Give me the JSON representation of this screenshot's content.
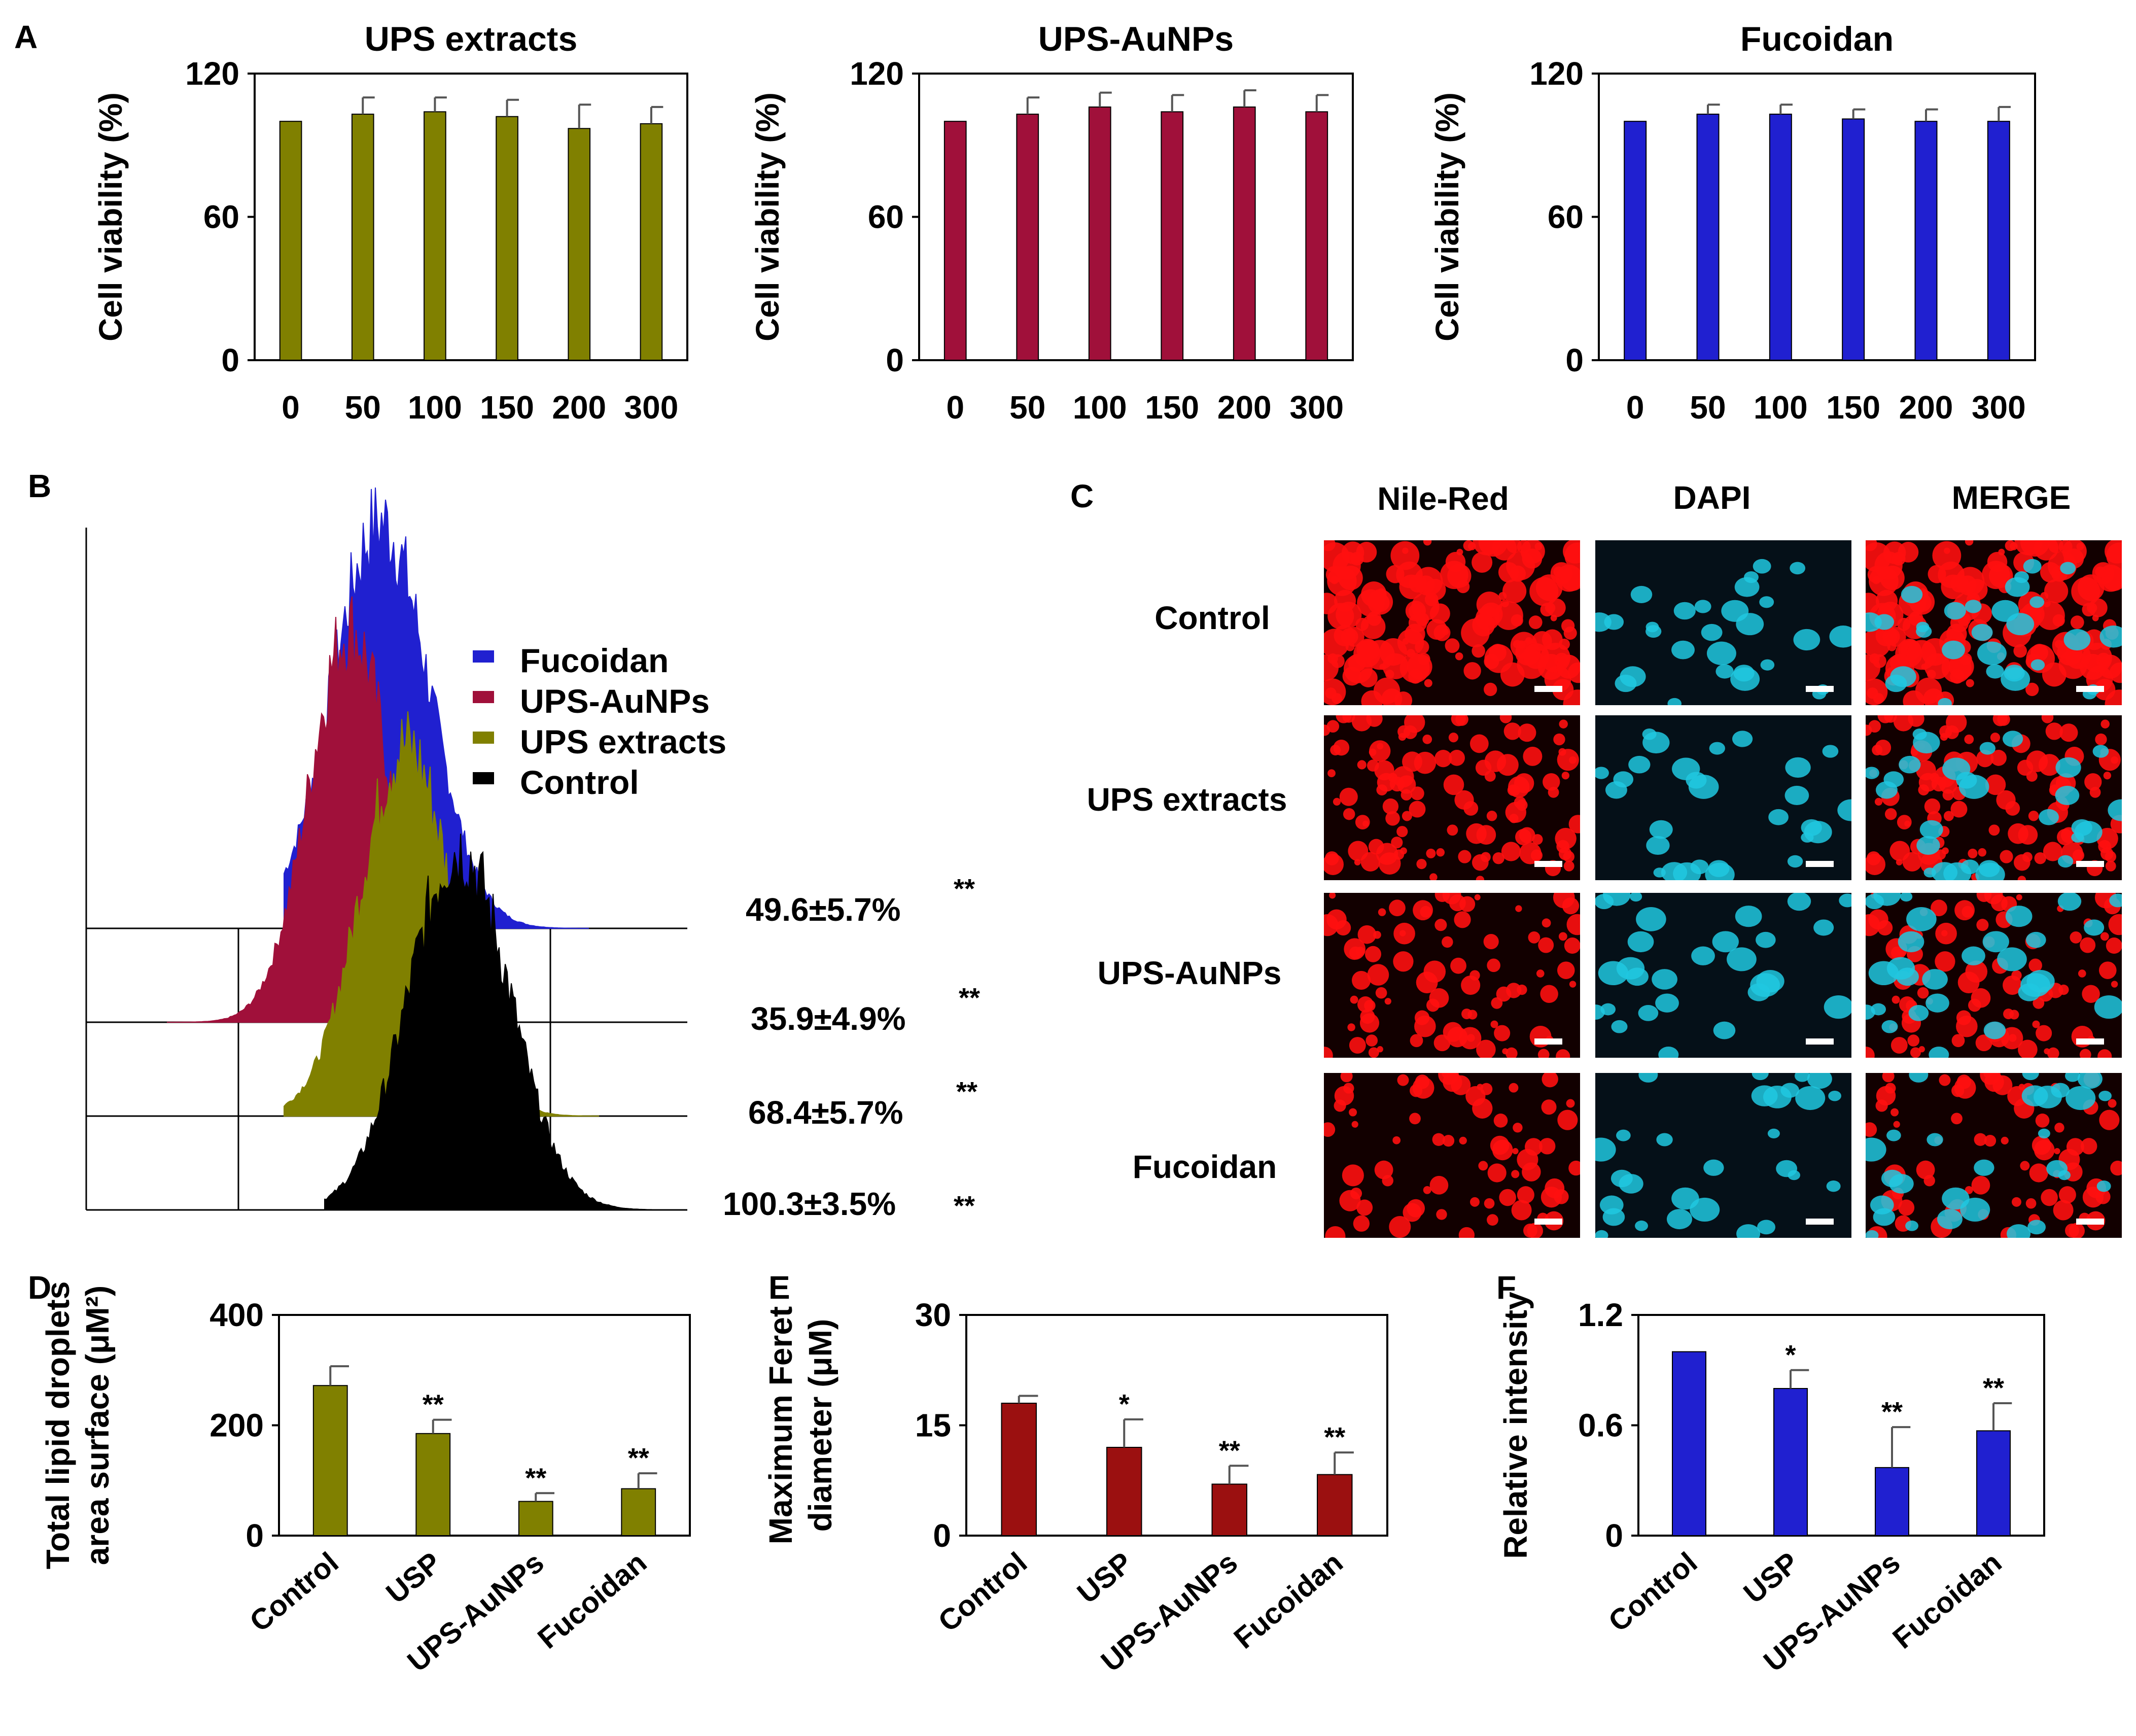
{
  "figure": {
    "panel_labels": [
      "A",
      "B",
      "C",
      "D",
      "E",
      "F"
    ],
    "colors": {
      "olive": "#808000",
      "crimson": "#A0103A",
      "blue": "#2020D0",
      "darkred": "#9B1010",
      "black": "#000000",
      "nile_red": "#FF1010",
      "dapi": "#20C8E0"
    }
  },
  "chart_data": [
    {
      "panel": "A",
      "type": "bar",
      "title": "UPS extracts",
      "ylabel": "Cell viability  (%)",
      "xlabel": "",
      "categories": [
        "0",
        "50",
        "100",
        "150",
        "200",
        "300"
      ],
      "values": [
        100,
        103,
        104,
        102,
        97,
        99
      ],
      "errors": [
        0,
        7,
        6,
        7,
        10,
        7
      ],
      "ylim": [
        0,
        120
      ],
      "yticks": [
        "0",
        "60",
        "120"
      ],
      "color": "#808000"
    },
    {
      "panel": "A",
      "type": "bar",
      "title": "UPS-AuNPs",
      "ylabel": "Cell viability  (%)",
      "xlabel": "",
      "categories": [
        "0",
        "50",
        "100",
        "150",
        "200",
        "300"
      ],
      "values": [
        100,
        103,
        106,
        104,
        106,
        104
      ],
      "errors": [
        0,
        7,
        6,
        7,
        7,
        7
      ],
      "ylim": [
        0,
        120
      ],
      "yticks": [
        "0",
        "60",
        "120"
      ],
      "color": "#A0103A"
    },
    {
      "panel": "A",
      "type": "bar",
      "title": "Fucoidan",
      "ylabel": "Cell viability  (%)",
      "xlabel": "",
      "categories": [
        "0",
        "50",
        "100",
        "150",
        "200",
        "300"
      ],
      "values": [
        100,
        103,
        103,
        101,
        100,
        100
      ],
      "errors": [
        0,
        4,
        4,
        4,
        5,
        6
      ],
      "ylim": [
        0,
        120
      ],
      "yticks": [
        "0",
        "60",
        "120"
      ],
      "color": "#2020D0"
    },
    {
      "panel": "B",
      "type": "histogram-overlay",
      "legend": [
        {
          "label": "Fucoidan",
          "color": "#2020D0"
        },
        {
          "label": "UPS-AuNPs",
          "color": "#A0103A"
        },
        {
          "label": "UPS extracts",
          "color": "#808000"
        },
        {
          "label": "Control",
          "color": "#000000"
        }
      ],
      "percentages": [
        {
          "text": "49.6±5.7%",
          "sig": "**"
        },
        {
          "text": "35.9±4.9%",
          "sig": "**"
        },
        {
          "text": "68.4±5.7%",
          "sig": "**"
        },
        {
          "text": "100.3±3.5%",
          "sig": "**"
        }
      ]
    },
    {
      "panel": "D",
      "type": "bar",
      "title": "",
      "ylabel_lines": [
        "Total lipid droplets",
        "area surface (μM²)"
      ],
      "xlabel": "",
      "categories": [
        "Control",
        "USP",
        "UPS-AuNPs",
        "Fucoidan"
      ],
      "values": [
        272,
        185,
        62,
        85
      ],
      "errors": [
        35,
        25,
        15,
        28
      ],
      "significance": [
        "",
        "**",
        "**",
        "**"
      ],
      "ylim": [
        0,
        400
      ],
      "yticks": [
        "0",
        "200",
        "400"
      ],
      "color": "#808000"
    },
    {
      "panel": "E",
      "type": "bar",
      "title": "",
      "ylabel_lines": [
        "Maximum Feret",
        "diameter (μM)"
      ],
      "xlabel": "",
      "categories": [
        "Control",
        "USP",
        "UPS-AuNPs",
        "Fucoidan"
      ],
      "values": [
        18,
        12,
        7,
        8.3
      ],
      "errors": [
        1,
        3.8,
        2.5,
        3
      ],
      "significance": [
        "",
        "*",
        "**",
        "**"
      ],
      "ylim": [
        0,
        30
      ],
      "yticks": [
        "0",
        "15",
        "30"
      ],
      "color": "#9B1010"
    },
    {
      "panel": "F",
      "type": "bar",
      "title": "",
      "ylabel_lines": [
        "Relative intensity"
      ],
      "xlabel": "",
      "categories": [
        "Control",
        "USP",
        "UPS-AuNPs",
        "Fucoidan"
      ],
      "values": [
        1.0,
        0.8,
        0.37,
        0.57
      ],
      "errors": [
        0.0,
        0.1,
        0.22,
        0.15
      ],
      "significance": [
        "",
        "*",
        "**",
        "**"
      ],
      "ylim": [
        0,
        1.2
      ],
      "yticks": [
        "0",
        "0.6",
        "1.2"
      ],
      "color": "#2020D0"
    }
  ],
  "microscopy": {
    "columns": [
      "Nile-Red",
      "DAPI",
      "MERGE"
    ],
    "rows": [
      "Control",
      "UPS extracts",
      "UPS-AuNPs",
      "Fucoidan"
    ]
  }
}
